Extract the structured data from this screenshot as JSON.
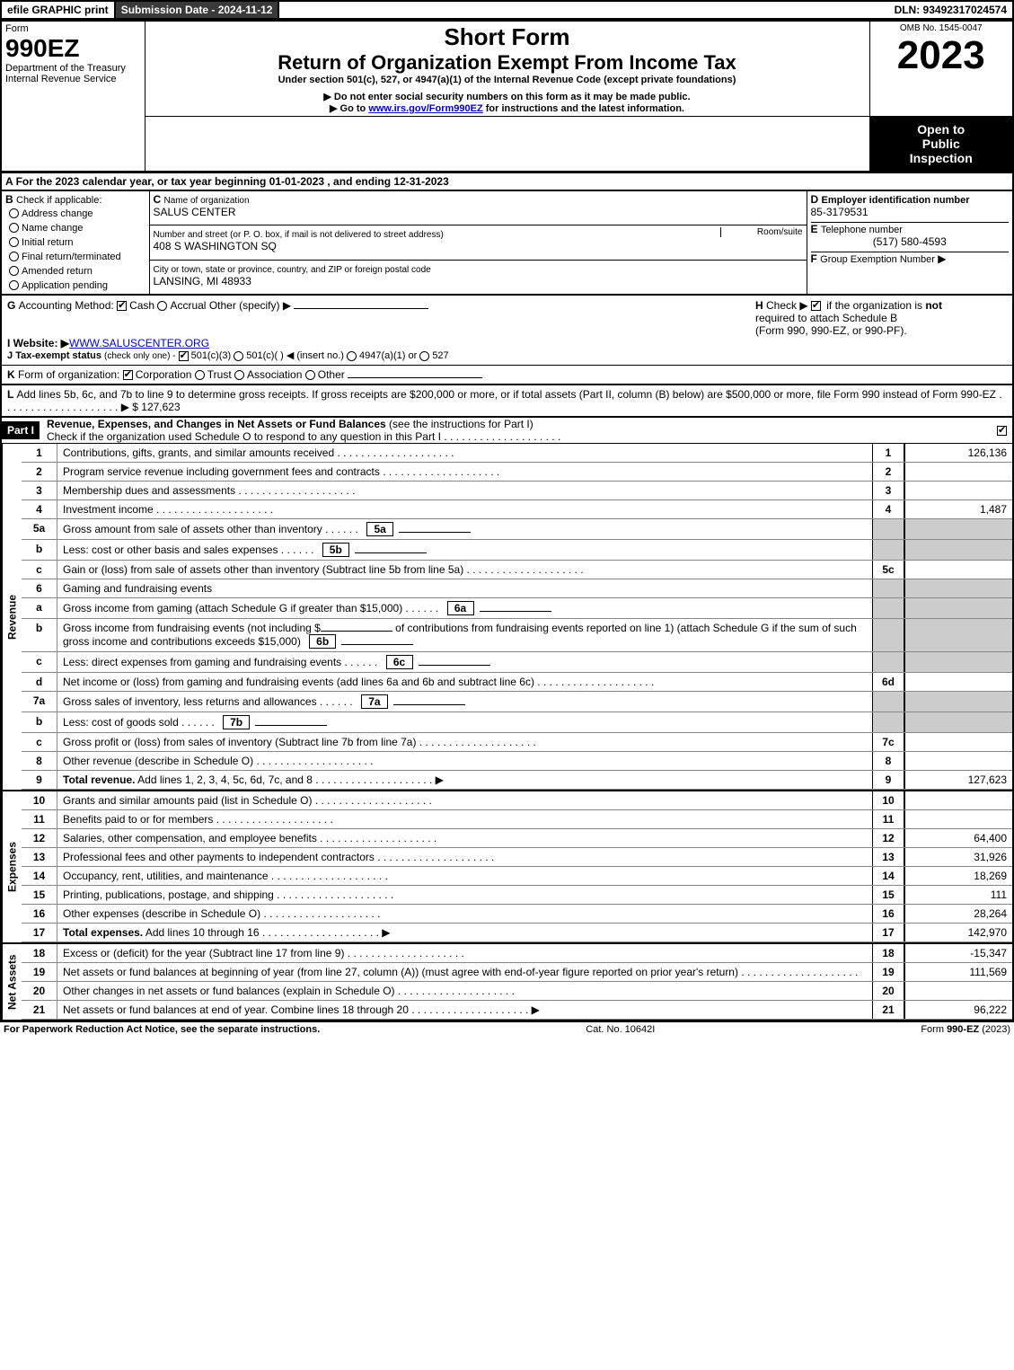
{
  "topbar": {
    "efile": "efile GRAPHIC print",
    "submission": "Submission Date - 2024-11-12",
    "dln": "DLN: 93492317024574"
  },
  "header": {
    "form_word": "Form",
    "form_no": "990EZ",
    "dept1": "Department of the Treasury",
    "dept2": "Internal Revenue Service",
    "omb": "OMB No. 1545-0047",
    "short_form": "Short Form",
    "return_title": "Return of Organization Exempt From Income Tax",
    "under": "Under section 501(c), 527, or 4947(a)(1) of the Internal Revenue Code (except private foundations)",
    "ssn": "Do not enter social security numbers on this form as it may be made public.",
    "goto": "Go to",
    "goto_link": "www.irs.gov/Form990EZ",
    "goto_tail": "for instructions and the latest information.",
    "year": "2023",
    "open1": "Open to",
    "open2": "Public",
    "open3": "Inspection"
  },
  "A": {
    "text": "For the 2023 calendar year, or tax year beginning 01-01-2023 , and ending 12-31-2023"
  },
  "B": {
    "label": "Check if applicable:",
    "opts": [
      "Address change",
      "Name change",
      "Initial return",
      "Final return/terminated",
      "Amended return",
      "Application pending"
    ]
  },
  "C": {
    "name_label": "Name of organization",
    "name": "SALUS CENTER",
    "street_label": "Number and street (or P. O. box, if mail is not delivered to street address)",
    "street": "408 S WASHINGTON SQ",
    "room_label": "Room/suite",
    "city_label": "City or town, state or province, country, and ZIP or foreign postal code",
    "city": "LANSING, MI  48933"
  },
  "D": {
    "label": "Employer identification number",
    "value": "85-3179531"
  },
  "E": {
    "label": "Telephone number",
    "value": "(517) 580-4593"
  },
  "F": {
    "label": "Group Exemption Number",
    "arrow": "▶"
  },
  "G": {
    "label": "Accounting Method:",
    "cash": "Cash",
    "accrual": "Accrual",
    "other": "Other (specify) ▶"
  },
  "H": {
    "text": "Check ▶",
    "tail": "if the organization is",
    "not": "not",
    "req": "required to attach Schedule B",
    "forms": "(Form 990, 990-EZ, or 990-PF)."
  },
  "I": {
    "label": "Website: ▶",
    "value": "WWW.SALUSCENTER.ORG"
  },
  "J": {
    "label": "Tax-exempt status",
    "tail": "(check only one) -",
    "o1": "501(c)(3)",
    "o2": "501(c)(  ) ◀ (insert no.)",
    "o3": "4947(a)(1) or",
    "o4": "527"
  },
  "K": {
    "label": "Form of organization:",
    "o1": "Corporation",
    "o2": "Trust",
    "o3": "Association",
    "o4": "Other"
  },
  "L": {
    "text": "Add lines 5b, 6c, and 7b to line 9 to determine gross receipts. If gross receipts are $200,000 or more, or if total assets (Part II, column (B) below) are $500,000 or more, file Form 990 instead of Form 990-EZ",
    "amount": "$ 127,623"
  },
  "partI": {
    "tag": "Part I",
    "title": "Revenue, Expenses, and Changes in Net Assets or Fund Balances",
    "instr": "(see the instructions for Part I)",
    "check": "Check if the organization used Schedule O to respond to any question in this Part I"
  },
  "rot": {
    "rev": "Revenue",
    "exp": "Expenses",
    "net": "Net Assets"
  },
  "lines": {
    "l1": {
      "n": "1",
      "d": "Contributions, gifts, grants, and similar amounts received",
      "box": "1",
      "amt": "126,136"
    },
    "l2": {
      "n": "2",
      "d": "Program service revenue including government fees and contracts",
      "box": "2",
      "amt": ""
    },
    "l3": {
      "n": "3",
      "d": "Membership dues and assessments",
      "box": "3",
      "amt": ""
    },
    "l4": {
      "n": "4",
      "d": "Investment income",
      "box": "4",
      "amt": "1,487"
    },
    "l5a": {
      "n": "5a",
      "d": "Gross amount from sale of assets other than inventory",
      "sb": "5a"
    },
    "l5b": {
      "n": "b",
      "d": "Less: cost or other basis and sales expenses",
      "sb": "5b"
    },
    "l5c": {
      "n": "c",
      "d": "Gain or (loss) from sale of assets other than inventory (Subtract line 5b from line 5a)",
      "box": "5c",
      "amt": ""
    },
    "l6": {
      "n": "6",
      "d": "Gaming and fundraising events"
    },
    "l6a": {
      "n": "a",
      "d": "Gross income from gaming (attach Schedule G if greater than $15,000)",
      "sb": "6a"
    },
    "l6b": {
      "n": "b",
      "d1": "Gross income from fundraising events (not including $",
      "d2": "of contributions from fundraising events reported on line 1) (attach Schedule G if the sum of such gross income and contributions exceeds $15,000)",
      "sb": "6b"
    },
    "l6c": {
      "n": "c",
      "d": "Less: direct expenses from gaming and fundraising events",
      "sb": "6c"
    },
    "l6d": {
      "n": "d",
      "d": "Net income or (loss) from gaming and fundraising events (add lines 6a and 6b and subtract line 6c)",
      "box": "6d",
      "amt": ""
    },
    "l7a": {
      "n": "7a",
      "d": "Gross sales of inventory, less returns and allowances",
      "sb": "7a"
    },
    "l7b": {
      "n": "b",
      "d": "Less: cost of goods sold",
      "sb": "7b"
    },
    "l7c": {
      "n": "c",
      "d": "Gross profit or (loss) from sales of inventory (Subtract line 7b from line 7a)",
      "box": "7c",
      "amt": ""
    },
    "l8": {
      "n": "8",
      "d": "Other revenue (describe in Schedule O)",
      "box": "8",
      "amt": ""
    },
    "l9": {
      "n": "9",
      "d": "Total revenue. Add lines 1, 2, 3, 4, 5c, 6d, 7c, and 8",
      "box": "9",
      "amt": "127,623",
      "arrow": true,
      "bold": true
    },
    "l10": {
      "n": "10",
      "d": "Grants and similar amounts paid (list in Schedule O)",
      "box": "10",
      "amt": ""
    },
    "l11": {
      "n": "11",
      "d": "Benefits paid to or for members",
      "box": "11",
      "amt": ""
    },
    "l12": {
      "n": "12",
      "d": "Salaries, other compensation, and employee benefits",
      "box": "12",
      "amt": "64,400"
    },
    "l13": {
      "n": "13",
      "d": "Professional fees and other payments to independent contractors",
      "box": "13",
      "amt": "31,926"
    },
    "l14": {
      "n": "14",
      "d": "Occupancy, rent, utilities, and maintenance",
      "box": "14",
      "amt": "18,269"
    },
    "l15": {
      "n": "15",
      "d": "Printing, publications, postage, and shipping",
      "box": "15",
      "amt": "111"
    },
    "l16": {
      "n": "16",
      "d": "Other expenses (describe in Schedule O)",
      "box": "16",
      "amt": "28,264"
    },
    "l17": {
      "n": "17",
      "d": "Total expenses. Add lines 10 through 16",
      "box": "17",
      "amt": "142,970",
      "arrow": true,
      "bold": true
    },
    "l18": {
      "n": "18",
      "d": "Excess or (deficit) for the year (Subtract line 17 from line 9)",
      "box": "18",
      "amt": "-15,347"
    },
    "l19": {
      "n": "19",
      "d": "Net assets or fund balances at beginning of year (from line 27, column (A)) (must agree with end-of-year figure reported on prior year's return)",
      "box": "19",
      "amt": "111,569"
    },
    "l20": {
      "n": "20",
      "d": "Other changes in net assets or fund balances (explain in Schedule O)",
      "box": "20",
      "amt": ""
    },
    "l21": {
      "n": "21",
      "d": "Net assets or fund balances at end of year. Combine lines 18 through 20",
      "box": "21",
      "amt": "96,222",
      "arrow": true
    }
  },
  "footer": {
    "left": "For Paperwork Reduction Act Notice, see the separate instructions.",
    "mid": "Cat. No. 10642I",
    "right_pre": "Form",
    "right_form": "990-EZ",
    "right_yr": "(2023)"
  }
}
